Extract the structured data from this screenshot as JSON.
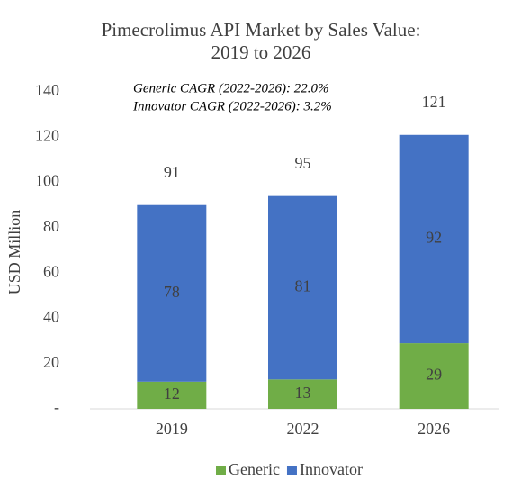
{
  "chart_data": {
    "type": "stacked_bar",
    "title": [
      "Pimecrolimus API Market by Sales Value:",
      "2019 to 2026"
    ],
    "annotations": [
      "Generic CAGR (2022-2026): 22.0%",
      "Innovator CAGR (2022-2026): 3.2%"
    ],
    "y_label": "USD Million",
    "categories": [
      "2019",
      "2022",
      "2026"
    ],
    "series": [
      {
        "name": "Generic",
        "color": "#70ad47",
        "values": [
          12,
          13,
          29
        ]
      },
      {
        "name": "Innovator",
        "color": "#4472c4",
        "values": [
          78,
          81,
          92
        ]
      }
    ],
    "totals": [
      91,
      95,
      121
    ],
    "ylim": [
      0,
      140
    ],
    "yticks": [
      {
        "value": 0,
        "label": "-"
      },
      20,
      40,
      60,
      80,
      100,
      120,
      140
    ],
    "legend": "bottom"
  }
}
